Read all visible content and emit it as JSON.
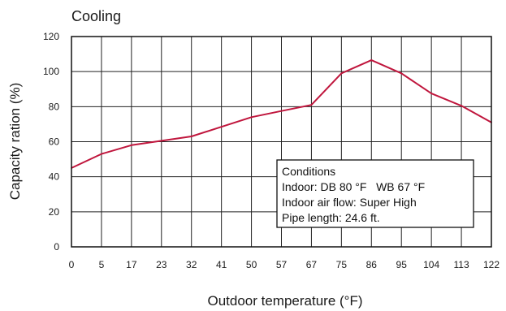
{
  "chart_data": {
    "type": "line",
    "title": "Cooling",
    "xlabel": "Outdoor temperature (°F)",
    "ylabel": "Capacity ration (%)",
    "categories": [
      "0",
      "5",
      "17",
      "23",
      "32",
      "41",
      "50",
      "57",
      "67",
      "75",
      "86",
      "95",
      "104",
      "113",
      "122"
    ],
    "ylim": [
      0,
      120
    ],
    "yticks": [
      0,
      20,
      40,
      60,
      80,
      100,
      120
    ],
    "grid": true,
    "series": [
      {
        "values": [
          45,
          53,
          58,
          60.5,
          63,
          68.5,
          74,
          77.5,
          81,
          99,
          106.5,
          99,
          87.5,
          80.5,
          71
        ],
        "color": "#c0163d"
      }
    ],
    "annotation": {
      "lines": [
        "Conditions",
        "Indoor: DB 80 °F   WB 67 °F",
        "Indoor air flow: Super High",
        "Pipe length: 24.6 ft."
      ]
    }
  }
}
